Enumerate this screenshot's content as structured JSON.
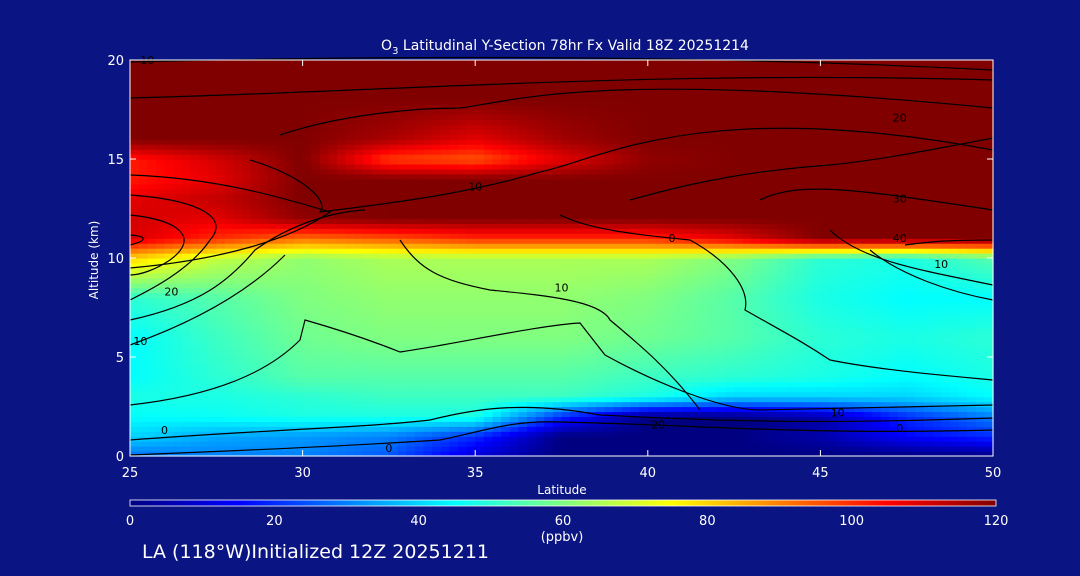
{
  "chart_data": {
    "type": "heatmap",
    "title_prefix": "O",
    "title_sub": "3",
    "title_rest": " Latitudinal Y-Section 78hr  Fx Valid 18Z 20251214",
    "xlabel": "Latitude",
    "ylabel": "Altitude (km)",
    "xlim": [
      25,
      50
    ],
    "ylim": [
      0,
      20
    ],
    "xticks": [
      "25",
      "30",
      "35",
      "40",
      "45",
      "50"
    ],
    "xtick_values": [
      25,
      30,
      35,
      40,
      45,
      50
    ],
    "yticks": [
      "0",
      "5",
      "10",
      "15",
      "20"
    ],
    "ytick_values": [
      0,
      5,
      10,
      15,
      20
    ],
    "colorbar": {
      "label": "(ppbv)",
      "range": [
        0,
        120
      ],
      "ticks": [
        "0",
        "20",
        "40",
        "60",
        "80",
        "100",
        "120"
      ],
      "tick_values": [
        0,
        20,
        40,
        60,
        80,
        100,
        120
      ],
      "colors": [
        "#000080",
        "#0000ff",
        "#0080ff",
        "#00ffff",
        "#80ff80",
        "#ffff00",
        "#ff8000",
        "#ff0000",
        "#800000"
      ]
    },
    "latitudes": [
      25,
      27.5,
      30,
      32.5,
      35,
      37.5,
      40,
      42.5,
      45,
      47.5,
      50
    ],
    "altitudes": [
      0,
      1,
      2,
      3,
      4,
      6,
      8,
      10,
      11,
      12,
      13,
      14,
      15,
      16,
      18,
      20
    ],
    "values": [
      [
        28,
        30,
        30,
        25,
        10,
        0,
        0,
        0,
        0,
        0,
        0
      ],
      [
        40,
        35,
        33,
        30,
        20,
        0,
        0,
        0,
        5,
        15,
        20
      ],
      [
        45,
        46,
        48,
        48,
        48,
        20,
        0,
        0,
        5,
        20,
        30
      ],
      [
        48,
        48,
        50,
        52,
        52,
        52,
        48,
        40,
        40,
        40,
        45
      ],
      [
        45,
        50,
        55,
        55,
        55,
        55,
        52,
        50,
        48,
        45,
        48
      ],
      [
        45,
        52,
        58,
        60,
        60,
        60,
        58,
        55,
        50,
        48,
        50
      ],
      [
        50,
        55,
        60,
        62,
        62,
        62,
        60,
        55,
        48,
        45,
        45
      ],
      [
        80,
        68,
        62,
        65,
        65,
        65,
        65,
        60,
        50,
        48,
        55
      ],
      [
        110,
        100,
        92,
        95,
        100,
        100,
        100,
        108,
        120,
        120,
        120
      ],
      [
        110,
        108,
        118,
        120,
        120,
        120,
        120,
        120,
        120,
        120,
        120
      ],
      [
        108,
        112,
        120,
        120,
        120,
        120,
        120,
        120,
        120,
        120,
        120
      ],
      [
        102,
        108,
        120,
        120,
        120,
        120,
        120,
        120,
        120,
        120,
        120
      ],
      [
        102,
        110,
        120,
        98,
        95,
        108,
        118,
        120,
        120,
        120,
        120
      ],
      [
        120,
        120,
        120,
        115,
        108,
        116,
        120,
        120,
        120,
        120,
        120
      ],
      [
        120,
        120,
        120,
        120,
        120,
        120,
        120,
        120,
        120,
        120,
        120
      ],
      [
        120,
        120,
        120,
        120,
        120,
        120,
        120,
        120,
        120,
        120,
        120
      ]
    ],
    "contour_labels": [
      "10",
      "10",
      "20",
      "10",
      "10",
      "0",
      "0",
      "10",
      "20",
      "0",
      "10",
      "30",
      "40",
      "20",
      "0"
    ],
    "grid": false,
    "legend": "colorbar-bottom"
  },
  "footer": "LA (118°W)Initialized 12Z 20251211"
}
